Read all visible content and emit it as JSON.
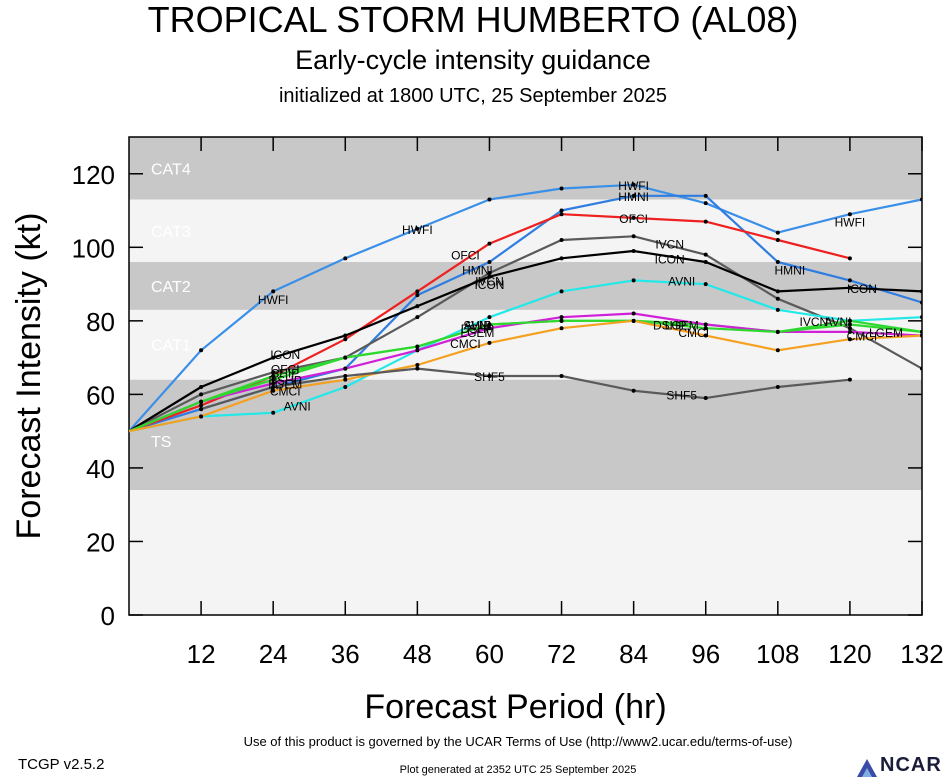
{
  "header": {
    "title": "TROPICAL STORM HUMBERTO (AL08)",
    "subtitle": "Early-cycle intensity guidance",
    "init_line": "initialized at 1800 UTC, 25 September 2025"
  },
  "footer": {
    "terms": "Use of this product is governed by the UCAR Terms of Use (http://www2.ucar.edu/terms-of-use)",
    "version": "TCGP v2.5.2",
    "generated": "Plot generated at 2352 UTC   25 September 2025",
    "logo_text": "NCAR"
  },
  "chart_data": {
    "type": "line",
    "xlabel": "Forecast Period (hr)",
    "ylabel": "Forecast Intensity (kt)",
    "xlim": [
      0,
      132
    ],
    "ylim": [
      0,
      130
    ],
    "xticks": [
      12,
      24,
      36,
      48,
      60,
      72,
      84,
      96,
      108,
      120,
      132
    ],
    "yticks": [
      0,
      20,
      40,
      60,
      80,
      100,
      120
    ],
    "bands": [
      {
        "label": "TS",
        "min": 34,
        "max": 64,
        "color": "#c8c8c8"
      },
      {
        "label": "CAT1",
        "min": 64,
        "max": 83,
        "color": "#f4f4f4"
      },
      {
        "label": "CAT2",
        "min": 83,
        "max": 96,
        "color": "#c8c8c8"
      },
      {
        "label": "CAT3",
        "min": 96,
        "max": 113,
        "color": "#f4f4f4"
      },
      {
        "label": "CAT4",
        "min": 113,
        "max": 130,
        "color": "#c8c8c8"
      }
    ],
    "below_band_color": "#f4f4f4",
    "series": [
      {
        "name": "HWFI",
        "color": "#3a8fe8",
        "x": [
          0,
          12,
          24,
          36,
          48,
          60,
          72,
          84,
          96,
          108,
          120,
          132
        ],
        "y": [
          50,
          72,
          88,
          97,
          105,
          113,
          116,
          117,
          112,
          104,
          109,
          113
        ],
        "labels": [
          {
            "x": 48,
            "y": 105
          },
          {
            "x": 24,
            "y": 86
          },
          {
            "x": 84,
            "y": 117
          },
          {
            "x": 120,
            "y": 107
          }
        ]
      },
      {
        "name": "HMNI",
        "color": "#2f7de0",
        "x": [
          0,
          12,
          24,
          36,
          48,
          60,
          72,
          84,
          96,
          108,
          120,
          132
        ],
        "y": [
          50,
          56,
          62,
          67,
          87,
          96,
          110,
          114,
          114,
          96,
          91,
          85
        ],
        "labels": [
          {
            "x": 58,
            "y": 94
          },
          {
            "x": 84,
            "y": 114
          },
          {
            "x": 110,
            "y": 94
          }
        ]
      },
      {
        "name": "OFCI",
        "color": "#ee2020",
        "x": [
          0,
          12,
          24,
          36,
          48,
          60,
          72,
          84,
          96,
          108,
          120
        ],
        "y": [
          50,
          57,
          65,
          75,
          88,
          101,
          109,
          108,
          107,
          102,
          97
        ],
        "labels": [
          {
            "x": 56,
            "y": 98
          },
          {
            "x": 84,
            "y": 108
          },
          {
            "x": 26,
            "y": 67
          }
        ]
      },
      {
        "name": "IVCN",
        "color": "#5a5a5a",
        "x": [
          0,
          12,
          24,
          36,
          48,
          60,
          72,
          84,
          96,
          108,
          120,
          132
        ],
        "y": [
          50,
          60,
          66,
          70,
          81,
          93,
          102,
          103,
          98,
          86,
          78,
          67
        ],
        "labels": [
          {
            "x": 90,
            "y": 101
          },
          {
            "x": 60,
            "y": 91
          },
          {
            "x": 114,
            "y": 80
          }
        ]
      },
      {
        "name": "ICON",
        "color": "#000000",
        "x": [
          0,
          12,
          24,
          36,
          48,
          60,
          72,
          84,
          96,
          108,
          120,
          132
        ],
        "y": [
          50,
          62,
          70,
          76,
          84,
          92,
          97,
          99,
          96,
          88,
          89,
          88
        ],
        "labels": [
          {
            "x": 26,
            "y": 71
          },
          {
            "x": 90,
            "y": 97
          },
          {
            "x": 60,
            "y": 90
          },
          {
            "x": 122,
            "y": 89
          }
        ]
      },
      {
        "name": "AVNI",
        "color": "#22e8e8",
        "x": [
          0,
          12,
          24,
          36,
          48,
          60,
          72,
          84,
          96,
          108,
          120,
          132
        ],
        "y": [
          50,
          54,
          55,
          62,
          72,
          81,
          88,
          91,
          90,
          83,
          80,
          81
        ],
        "labels": [
          {
            "x": 28,
            "y": 57
          },
          {
            "x": 58,
            "y": 79
          },
          {
            "x": 92,
            "y": 91
          },
          {
            "x": 118,
            "y": 80
          }
        ]
      },
      {
        "name": "SHIP",
        "color": "#2fd82f",
        "x": [
          0,
          12,
          24,
          36,
          48,
          60,
          72,
          84,
          96,
          108,
          120,
          132
        ],
        "y": [
          50,
          58,
          65,
          70,
          73,
          79,
          80,
          80,
          79,
          77,
          80,
          77
        ],
        "labels": [
          {
            "x": 26,
            "y": 66
          },
          {
            "x": 58,
            "y": 79
          }
        ]
      },
      {
        "name": "LGEM",
        "color": "#d020d8",
        "x": [
          0,
          12,
          24,
          36,
          48,
          60,
          72,
          84,
          96,
          108,
          120,
          132
        ],
        "y": [
          50,
          58,
          63,
          67,
          72,
          78,
          81,
          82,
          79,
          77,
          77,
          76
        ],
        "labels": [
          {
            "x": 26,
            "y": 63
          },
          {
            "x": 58,
            "y": 77
          },
          {
            "x": 92,
            "y": 79
          },
          {
            "x": 126,
            "y": 77
          }
        ]
      },
      {
        "name": "DSHP",
        "color": "#2fd82f",
        "x": [
          0,
          12,
          24,
          36,
          48,
          60,
          72,
          84,
          96,
          108,
          120,
          132
        ],
        "y": [
          50,
          58,
          64,
          70,
          73,
          79,
          80,
          80,
          78,
          77,
          79,
          77
        ],
        "labels": [
          {
            "x": 26,
            "y": 64
          },
          {
            "x": 58,
            "y": 78
          },
          {
            "x": 90,
            "y": 79
          }
        ]
      },
      {
        "name": "CMCI",
        "color": "#f4a020",
        "x": [
          0,
          12,
          24,
          36,
          48,
          60,
          72,
          84,
          96,
          108,
          120,
          132
        ],
        "y": [
          50,
          54,
          61,
          64,
          68,
          74,
          78,
          80,
          76,
          72,
          75,
          76
        ],
        "labels": [
          {
            "x": 26,
            "y": 61
          },
          {
            "x": 56,
            "y": 74
          },
          {
            "x": 94,
            "y": 77
          },
          {
            "x": 122,
            "y": 76
          }
        ]
      },
      {
        "name": "SHF5",
        "color": "#5a5a5a",
        "x": [
          12,
          24,
          36,
          48,
          60,
          72,
          84,
          96,
          108,
          120
        ],
        "y": [
          56,
          62,
          65,
          67,
          65,
          65,
          61,
          59,
          62,
          64
        ],
        "labels": [
          {
            "x": 60,
            "y": 65
          },
          {
            "x": 92,
            "y": 60
          }
        ]
      }
    ]
  }
}
